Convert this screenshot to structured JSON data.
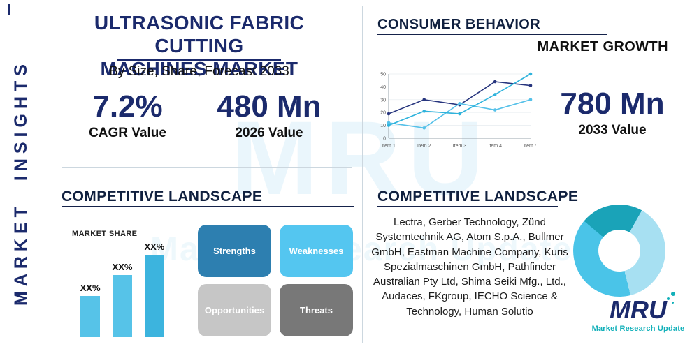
{
  "sidebar": {
    "label": "MARKET  INSIGHTS"
  },
  "header": {
    "title_line1": "ULTRASONIC FABRIC CUTTING",
    "title_line2": "MACHINES MARKET",
    "subtitle": "By Size, Share, Forecast 2033"
  },
  "stats": {
    "cagr_value": "7.2%",
    "cagr_label": "CAGR Value",
    "value_2026": "480 Mn",
    "label_2026": "2026 Value",
    "value_2033": "780 Mn",
    "label_2033": "2033 Value"
  },
  "sections": {
    "consumer_behavior": "CONSUMER BEHAVIOR",
    "market_growth": "MARKET GROWTH",
    "competitive_landscape_left": "COMPETITIVE LANDSCAPE",
    "competitive_landscape_right": "COMPETITIVE LANDSCAPE",
    "market_share": "MARKET SHARE"
  },
  "swot": {
    "strengths": "Strengths",
    "weaknesses": "Weaknesses",
    "opportunities": "Opportunities",
    "threats": "Threats"
  },
  "companies": "Lectra, Gerber Technology, Zünd Systemtechnik AG, Atom S.p.A., Bullmer GmbH, Eastman Machine Company, Kuris Spezialmaschinen GmbH, Pathfinder Australian Pty Ltd, Shima Seiki Mfg., Ltd., Audaces, FKgroup, IECHO Science & Technology, Human Solutio",
  "logo": {
    "text": "MRU",
    "tagline": "Market Research Update"
  },
  "watermark": {
    "big": "MRU",
    "sub": "Market Research Update"
  },
  "colors": {
    "navy": "#1b2a6c",
    "heading_dark": "#10203f",
    "light_blue": "#56c3e8",
    "teal": "#12b0b9",
    "divider": "#ccd7df"
  },
  "chart_data": [
    {
      "type": "line",
      "target": "line-chart",
      "title": "Consumer Behavior / Market Growth trend",
      "categories": [
        "Item 1",
        "Item 2",
        "Item 3",
        "Item 4",
        "Item 5"
      ],
      "series": [
        {
          "name": "series-navy",
          "color": "#27357e",
          "values": [
            19,
            30,
            26,
            44,
            41
          ]
        },
        {
          "name": "series-lightblue",
          "color": "#55c1e9",
          "values": [
            12,
            8,
            27,
            22,
            30
          ]
        },
        {
          "name": "series-cyan",
          "color": "#2fb3dc",
          "values": [
            10,
            21,
            19,
            34,
            50
          ]
        }
      ],
      "ylim": [
        0,
        50
      ],
      "yticks": [
        0,
        10,
        20,
        30,
        40,
        50
      ],
      "grid": true,
      "legend": "none"
    },
    {
      "type": "bar",
      "target": "bar-chart",
      "title": "Market Share",
      "categories": [
        "bar-1",
        "bar-2",
        "bar-3"
      ],
      "labels": [
        "XX%",
        "XX%",
        "XX%"
      ],
      "values": [
        30,
        45,
        60
      ],
      "colors": [
        "#56c3e8",
        "#56c3e8",
        "#3cb4de"
      ],
      "ylim": [
        0,
        70
      ]
    },
    {
      "type": "donut",
      "target": "donut-chart",
      "title": "Competitive landscape share",
      "from_deg": -50,
      "segments": [
        {
          "name": "segment-dark-teal",
          "color": "#1aa3b8",
          "pct": 22
        },
        {
          "name": "segment-light-blue",
          "color": "#a7e0f2",
          "pct": 38
        },
        {
          "name": "segment-mid-cyan",
          "color": "#4ac4e8",
          "pct": 40
        }
      ]
    }
  ]
}
